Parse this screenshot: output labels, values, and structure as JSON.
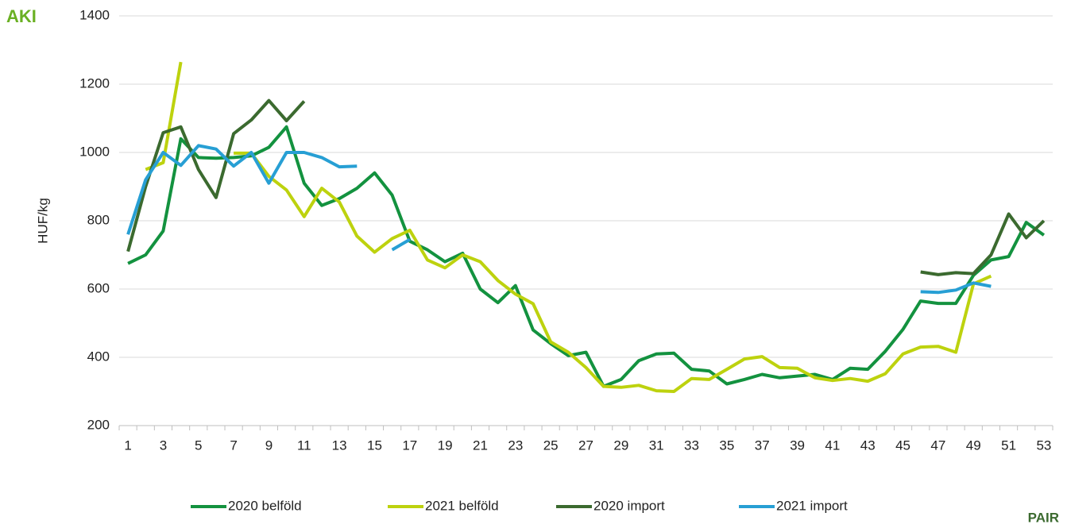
{
  "chart_data": {
    "type": "line",
    "y_label": "HUF/kg",
    "categories": [
      1,
      null,
      3,
      null,
      5,
      null,
      7,
      null,
      9,
      null,
      11,
      null,
      13,
      null,
      15,
      null,
      17,
      null,
      19,
      null,
      21,
      null,
      23,
      null,
      25,
      null,
      27,
      null,
      29,
      null,
      31,
      null,
      33,
      null,
      35,
      null,
      37,
      null,
      39,
      null,
      41,
      null,
      43,
      null,
      45,
      null,
      47,
      null,
      49,
      null,
      51,
      null,
      53
    ],
    "series": [
      {
        "name": "2020 belföld",
        "color": "#13923f",
        "values": [
          675,
          700,
          770,
          1040,
          985,
          983,
          985,
          990,
          1015,
          1075,
          910,
          845,
          865,
          895,
          940,
          875,
          740,
          715,
          680,
          705,
          600,
          560,
          610,
          480,
          440,
          405,
          415,
          315,
          335,
          390,
          410,
          412,
          365,
          360,
          322,
          335,
          350,
          340,
          345,
          350,
          335,
          368,
          365,
          418,
          482,
          565,
          558,
          558,
          640,
          685,
          695,
          795,
          758
        ]
      },
      {
        "name": "2021 belföld",
        "color": "#bdd20e",
        "values": [
          null,
          950,
          970,
          1265,
          null,
          null,
          998,
          998,
          930,
          890,
          812,
          895,
          855,
          755,
          708,
          748,
          772,
          685,
          662,
          700,
          680,
          625,
          585,
          557,
          445,
          415,
          370,
          315,
          312,
          318,
          302,
          300,
          338,
          335,
          365,
          395,
          402,
          370,
          368,
          340,
          332,
          338,
          330,
          352,
          410,
          430,
          432,
          415,
          615,
          638,
          null,
          null,
          null
        ]
      },
      {
        "name": "2020 import",
        "color": "#3b6a2f",
        "values": [
          710,
          900,
          1058,
          1075,
          950,
          868,
          1055,
          1095,
          1152,
          1093,
          1150,
          null,
          null,
          null,
          null,
          null,
          null,
          null,
          null,
          null,
          null,
          null,
          null,
          null,
          null,
          null,
          null,
          null,
          null,
          null,
          null,
          null,
          null,
          null,
          null,
          null,
          null,
          null,
          null,
          null,
          null,
          null,
          null,
          null,
          null,
          650,
          642,
          648,
          645,
          700,
          820,
          750,
          800
        ]
      },
      {
        "name": "2021 import",
        "color": "#279fd4",
        "values": [
          760,
          920,
          1000,
          962,
          1020,
          1010,
          960,
          1000,
          910,
          1000,
          1000,
          985,
          958,
          960,
          null,
          715,
          745,
          null,
          null,
          null,
          null,
          null,
          null,
          null,
          null,
          null,
          null,
          null,
          null,
          null,
          null,
          null,
          null,
          null,
          null,
          null,
          null,
          null,
          null,
          null,
          null,
          null,
          null,
          null,
          null,
          592,
          590,
          597,
          618,
          608,
          null,
          null,
          null
        ]
      }
    ],
    "ylim": [
      200,
      1400
    ],
    "yticks": [
      200,
      400,
      600,
      800,
      1000,
      1200,
      1400
    ],
    "grid": true,
    "legend": "bottom"
  },
  "logos": {
    "left": "AKI",
    "right": "PAIR"
  }
}
